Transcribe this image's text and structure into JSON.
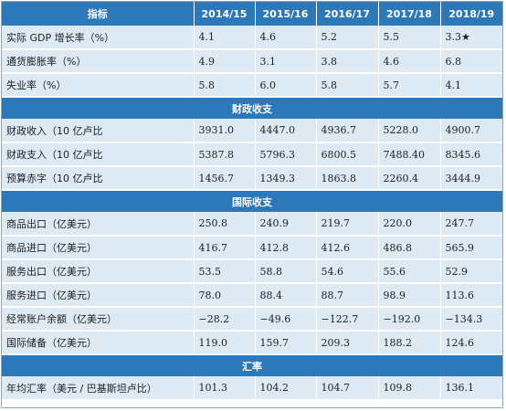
{
  "header": {
    "label": "指标",
    "years": [
      "2014/15",
      "2015/16",
      "2016/17",
      "2017/18",
      "2018/19"
    ]
  },
  "economy": [
    {
      "label": "实际 GDP 增长率（%）",
      "values": [
        "4.1",
        "4.6",
        "5.2",
        "5.5",
        "3.3★"
      ]
    },
    {
      "label": "通货膨胀率（%）",
      "values": [
        "4.9",
        "3.1",
        "3.8",
        "4.6",
        "6.8"
      ]
    },
    {
      "label": "失业率（%）",
      "values": [
        "5.8",
        "6.0",
        "5.8",
        "5.7",
        "4.1"
      ]
    }
  ],
  "fiscal": {
    "title": "财政收支",
    "rows": [
      {
        "label": "财政收入（10 亿卢比",
        "values": [
          "3931.0",
          "4447.0",
          "4936.7",
          "5228.0",
          "4900.7"
        ]
      },
      {
        "label": "财政支入（10 亿卢比",
        "values": [
          "5387.8",
          "5796.3",
          "6800.5",
          "7488.40",
          "8345.6"
        ]
      },
      {
        "label": "预算赤字（10 亿卢比",
        "values": [
          "1456.7",
          "1349.3",
          "1863.8",
          "2260.4",
          "3444.9"
        ]
      }
    ]
  },
  "international": {
    "title": "国际收支",
    "rows": [
      {
        "label": "商品出口（亿美元）",
        "values": [
          "250.8",
          "240.9",
          "219.7",
          "220.0",
          "247.7"
        ]
      },
      {
        "label": "商品进口（亿美元）",
        "values": [
          "416.7",
          "412.8",
          "412.6",
          "486.8",
          "565.9"
        ]
      },
      {
        "label": "服务出口（亿美元）",
        "values": [
          "53.5",
          "58.8",
          "54.6",
          "55.6",
          "52.9"
        ]
      },
      {
        "label": "服务进口（亿美元）",
        "values": [
          "78.0",
          "88.4",
          "88.7",
          "98.9",
          "113.6"
        ]
      },
      {
        "label": "经常账户余额（亿美元）",
        "values": [
          "−28.2",
          "−49.6",
          "−122.7",
          "−192.0",
          "−134.3"
        ]
      },
      {
        "label": "国际储备（亿美元）",
        "values": [
          "119.0",
          "159.7",
          "209.3",
          "188.2",
          "124.6"
        ]
      }
    ]
  },
  "exchange": {
    "title": "汇率",
    "rows": [
      {
        "label": "年均汇率（美元 / 巴基斯坦卢比）",
        "values": [
          "101.3",
          "104.2",
          "104.7",
          "109.8",
          "136.1"
        ]
      }
    ]
  }
}
